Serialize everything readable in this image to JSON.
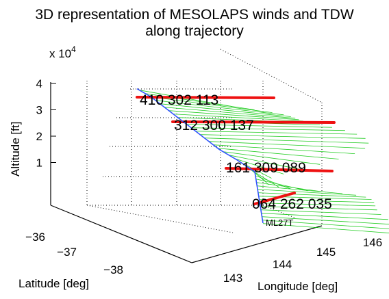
{
  "chart_data": {
    "type": "line3d",
    "title": "3D representation of MESOLAPS winds and TDW",
    "subtitle": "along trajectory",
    "xlabel": "Longitude [deg]",
    "ylabel": "Latitude [deg]",
    "zlabel": "Altitude [ft]",
    "z_exponent": "x 10^4",
    "z_exponent_base": "x 10",
    "z_exponent_power": "4",
    "x_ticks": [
      "143",
      "144",
      "145",
      "146"
    ],
    "y_ticks": [
      "−36",
      "−37",
      "−38"
    ],
    "z_ticks": [
      "1",
      "2",
      "3",
      "4"
    ],
    "grid": true,
    "trajectory_label": "ML27T",
    "trajectory": {
      "longitude": [
        143.6,
        143.7,
        143.8,
        143.9,
        144.0,
        144.1,
        144.2,
        144.3,
        144.4,
        144.5
      ],
      "latitude": [
        -35.95,
        -36.15,
        -36.35,
        -36.55,
        -36.75,
        -36.95,
        -37.15,
        -37.3,
        -37.45,
        -37.6
      ],
      "altitude": [
        38000,
        35000,
        31000,
        27000,
        23000,
        19000,
        15000,
        11000,
        6500,
        2500
      ]
    },
    "tdw_labels": [
      {
        "text": "410 302 113",
        "altitude": 38000
      },
      {
        "text": "312 300 137",
        "altitude": 30000
      },
      {
        "text": "161 309 089",
        "altitude": 16000
      },
      {
        "text": "064 262 035",
        "altitude": 4500
      }
    ],
    "colors": {
      "trajectory": "#3355ff",
      "mesolaps_winds": "#22cc22",
      "tdw_winds": "#ee1111",
      "grid": "#000000"
    }
  }
}
